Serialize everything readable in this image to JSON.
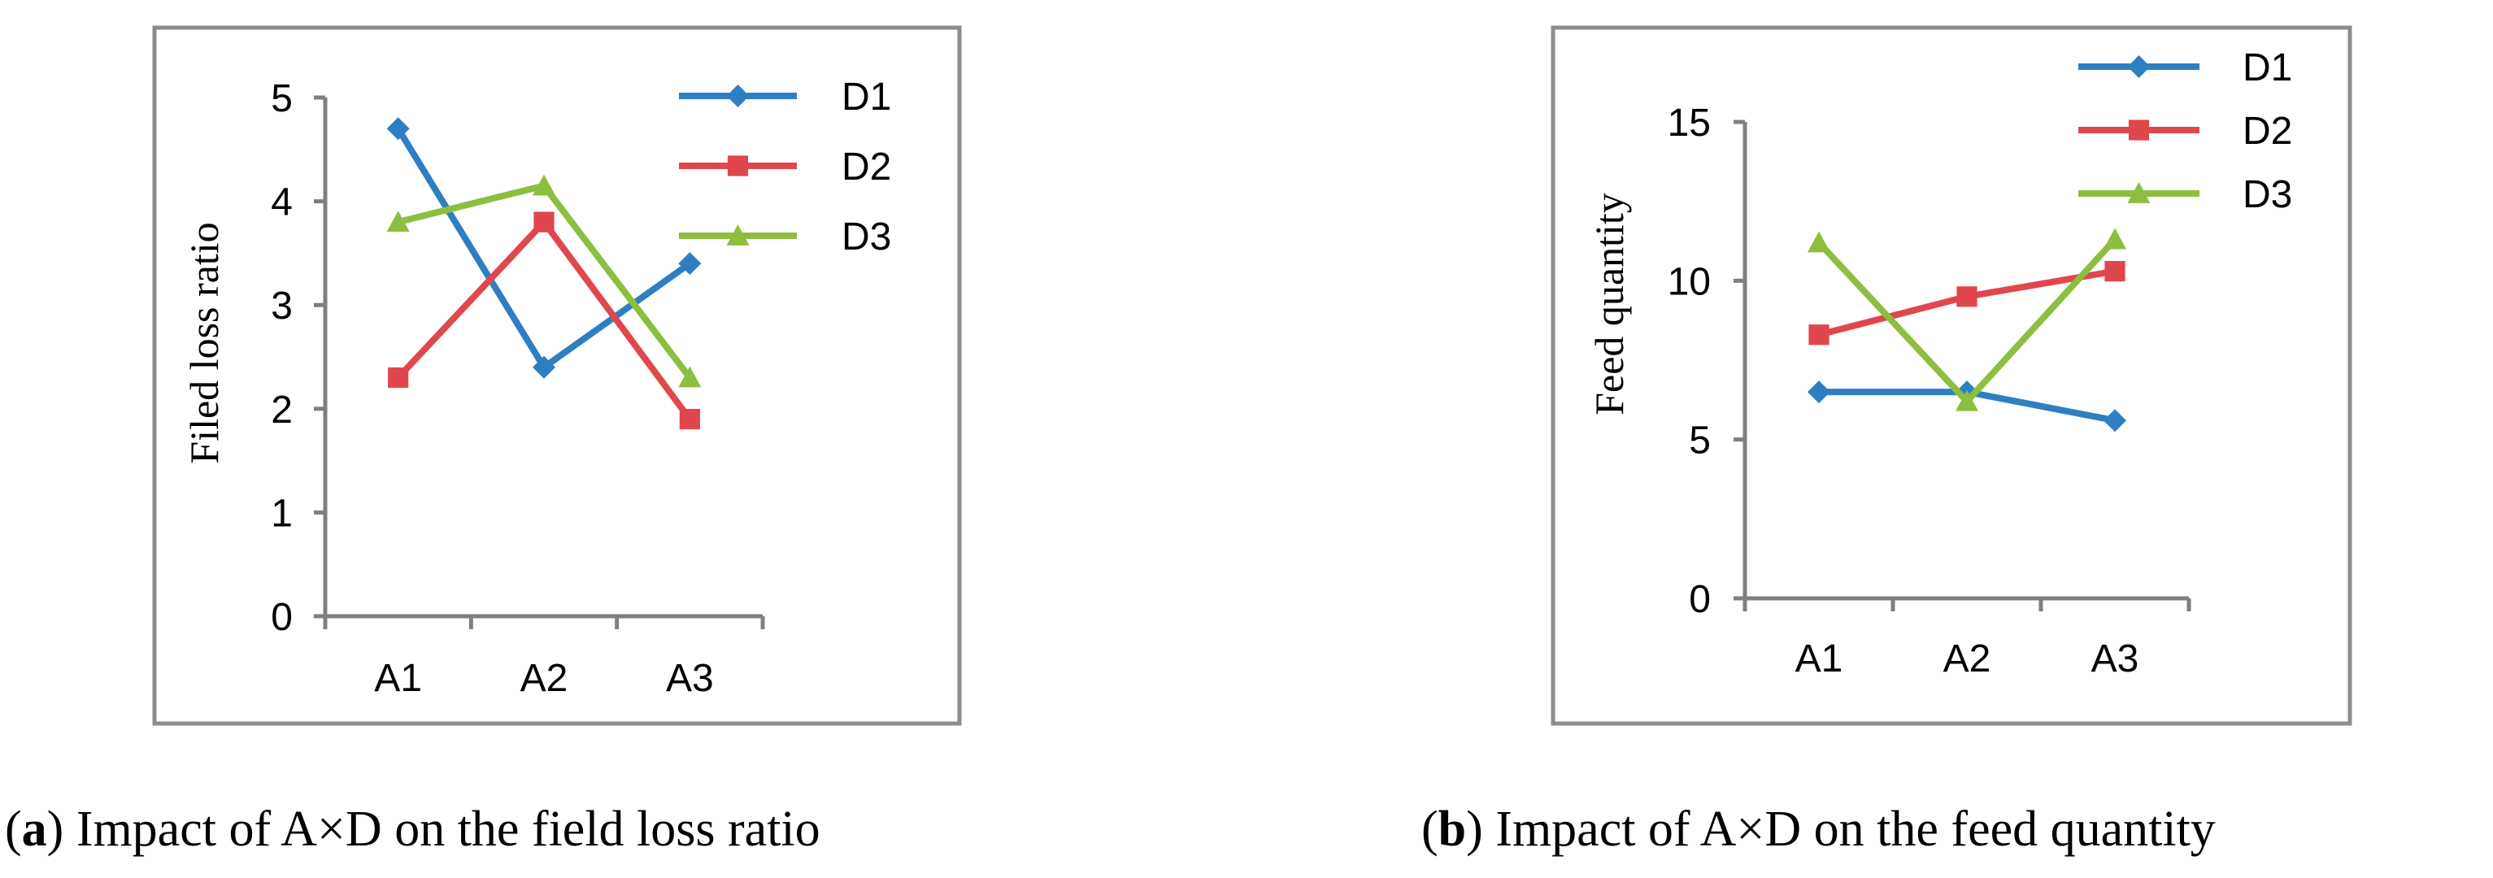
{
  "colors": {
    "D1": "#2E7FC2",
    "D2": "#E0474C",
    "D3": "#8CBF3F",
    "axis": "#7F7F7F",
    "frame": "#8C8C8C",
    "text": "#000000"
  },
  "captions": [
    {
      "letter": "a",
      "text": " Impact of A×D on the field loss ratio"
    },
    {
      "letter": "b",
      "text": " Impact of A×D on the feed quantity"
    }
  ],
  "chart_data": [
    {
      "type": "line",
      "categories": [
        "A1",
        "A2",
        "A3"
      ],
      "ylabel": "Filed loss ratio",
      "ylim": [
        0,
        5
      ],
      "yticks": [
        0,
        1,
        2,
        3,
        4,
        5
      ],
      "grid": false,
      "legend_position": "top-right",
      "series": [
        {
          "name": "D1",
          "marker": "diamond",
          "values": [
            4.7,
            2.4,
            3.4
          ]
        },
        {
          "name": "D2",
          "marker": "square",
          "values": [
            2.3,
            3.8,
            1.9
          ]
        },
        {
          "name": "D3",
          "marker": "triangle",
          "values": [
            3.8,
            4.15,
            2.3
          ]
        }
      ]
    },
    {
      "type": "line",
      "categories": [
        "A1",
        "A2",
        "A3"
      ],
      "ylabel": "Feed quantity",
      "ylim": [
        0,
        15
      ],
      "yticks": [
        0,
        5,
        10,
        15
      ],
      "grid": false,
      "legend_position": "top-right",
      "series": [
        {
          "name": "D1",
          "marker": "diamond",
          "values": [
            6.5,
            6.5,
            5.6
          ]
        },
        {
          "name": "D2",
          "marker": "square",
          "values": [
            8.3,
            9.5,
            10.3
          ]
        },
        {
          "name": "D3",
          "marker": "triangle",
          "values": [
            11.2,
            6.2,
            11.3
          ]
        }
      ]
    }
  ]
}
